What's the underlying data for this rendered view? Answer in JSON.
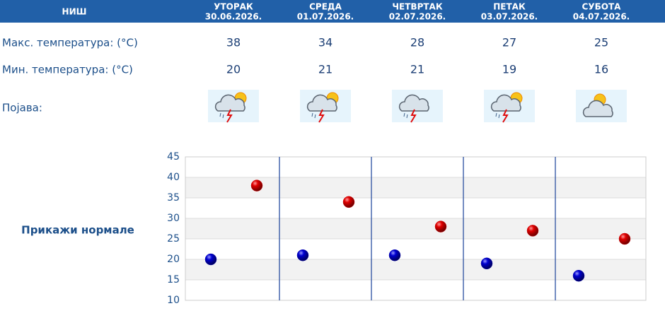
{
  "header": {
    "city": "НИШ"
  },
  "days": [
    {
      "name": "УТОРАК",
      "date": "30.06.2026.",
      "max": 38,
      "min": 20
    },
    {
      "name": "СРЕДА",
      "date": "01.07.2026.",
      "max": 34,
      "min": 21
    },
    {
      "name": "ЧЕТВРТАК",
      "date": "02.07.2026.",
      "max": 28,
      "min": 21
    },
    {
      "name": "ПЕТАК",
      "date": "03.07.2026.",
      "max": 27,
      "min": 19
    },
    {
      "name": "СУБОТА",
      "date": "04.07.2026.",
      "max": 25,
      "min": 16
    }
  ],
  "rows": {
    "max_label": "Макс. температура: (°C)",
    "min_label": "Мин. температура: (°C)",
    "phenomenon_label": "Појава:"
  },
  "chart": {
    "ylim": [
      10,
      45
    ],
    "yticks": [
      10,
      15,
      20,
      25,
      30,
      35,
      40,
      45
    ],
    "toggle": "Прикажи нормале",
    "max_color": "#cc0000",
    "min_color": "#0000b0"
  }
}
